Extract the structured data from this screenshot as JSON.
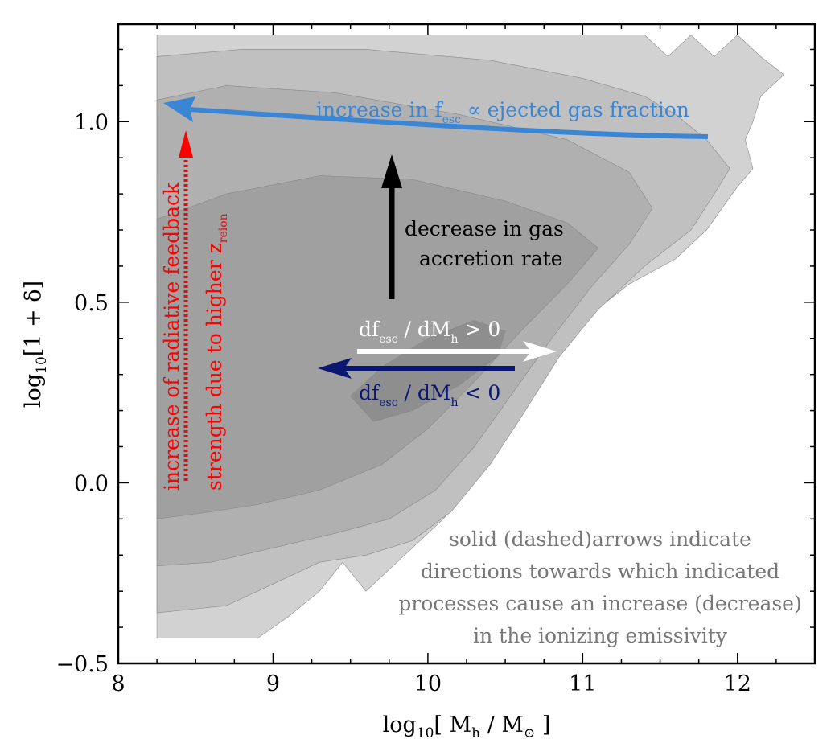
{
  "chart_data": {
    "type": "contour",
    "xlabel_main": "log",
    "xlabel_sub": "10",
    "xlabel_rest": "[ M",
    "xlabel_msub": "h",
    "xlabel_tail": " / M",
    "xlabel_sun": "⊙",
    "xlabel_close": " ]",
    "ylabel_main": "log",
    "ylabel_sub": "10",
    "ylabel_rest": "[1 + δ]",
    "xlim": [
      8,
      12.5
    ],
    "ylim": [
      -0.5,
      1.27
    ],
    "xticks": [
      {
        "v": 8,
        "label": "8"
      },
      {
        "v": 9,
        "label": "9"
      },
      {
        "v": 10,
        "label": "10"
      },
      {
        "v": 11,
        "label": "11"
      },
      {
        "v": 12,
        "label": "12"
      }
    ],
    "yticks": [
      {
        "v": -0.5,
        "label": "−0.5"
      },
      {
        "v": 0.0,
        "label": "0.0"
      },
      {
        "v": 0.5,
        "label": "0.5"
      },
      {
        "v": 1.0,
        "label": "1.0"
      }
    ],
    "contour_levels": [
      {
        "color": "#d2d2d2",
        "points": [
          [
            8.25,
            1.24
          ],
          [
            8.7,
            1.24
          ],
          [
            9.5,
            1.24
          ],
          [
            10.5,
            1.24
          ],
          [
            11.4,
            1.24
          ],
          [
            11.55,
            1.18
          ],
          [
            11.7,
            1.24
          ],
          [
            11.85,
            1.18
          ],
          [
            12.0,
            1.24
          ],
          [
            12.15,
            1.18
          ],
          [
            12.3,
            1.13
          ],
          [
            12.15,
            1.07
          ],
          [
            12.1,
            1.0
          ],
          [
            12.05,
            0.95
          ],
          [
            12.1,
            0.87
          ],
          [
            12.0,
            0.82
          ],
          [
            11.9,
            0.76
          ],
          [
            11.8,
            0.7
          ],
          [
            11.6,
            0.62
          ],
          [
            11.3,
            0.55
          ],
          [
            11.0,
            0.45
          ],
          [
            10.8,
            0.35
          ],
          [
            10.6,
            0.2
          ],
          [
            10.4,
            0.05
          ],
          [
            10.1,
            -0.1
          ],
          [
            9.8,
            -0.22
          ],
          [
            9.6,
            -0.3
          ],
          [
            9.45,
            -0.22
          ],
          [
            9.3,
            -0.3
          ],
          [
            9.1,
            -0.37
          ],
          [
            8.9,
            -0.43
          ],
          [
            8.6,
            -0.43
          ],
          [
            8.25,
            -0.43
          ]
        ]
      },
      {
        "color": "#c0c0c0",
        "points": [
          [
            8.25,
            1.18
          ],
          [
            8.8,
            1.2
          ],
          [
            9.6,
            1.2
          ],
          [
            10.4,
            1.17
          ],
          [
            11.0,
            1.12
          ],
          [
            11.4,
            1.07
          ],
          [
            11.6,
            1.02
          ],
          [
            11.8,
            0.95
          ],
          [
            11.95,
            0.87
          ],
          [
            11.85,
            0.8
          ],
          [
            11.7,
            0.7
          ],
          [
            11.4,
            0.6
          ],
          [
            11.1,
            0.48
          ],
          [
            10.85,
            0.35
          ],
          [
            10.6,
            0.18
          ],
          [
            10.4,
            0.05
          ],
          [
            10.15,
            -0.08
          ],
          [
            9.9,
            -0.16
          ],
          [
            9.6,
            -0.2
          ],
          [
            9.3,
            -0.22
          ],
          [
            9.0,
            -0.28
          ],
          [
            8.7,
            -0.34
          ],
          [
            8.25,
            -0.36
          ]
        ]
      },
      {
        "color": "#b0b0b0",
        "points": [
          [
            8.25,
            1.06
          ],
          [
            8.7,
            1.1
          ],
          [
            9.4,
            1.08
          ],
          [
            10.2,
            1.02
          ],
          [
            10.9,
            0.95
          ],
          [
            11.3,
            0.86
          ],
          [
            11.45,
            0.76
          ],
          [
            11.3,
            0.66
          ],
          [
            11.05,
            0.54
          ],
          [
            10.8,
            0.4
          ],
          [
            10.55,
            0.25
          ],
          [
            10.3,
            0.1
          ],
          [
            10.05,
            -0.02
          ],
          [
            9.75,
            -0.1
          ],
          [
            9.4,
            -0.14
          ],
          [
            9.0,
            -0.18
          ],
          [
            8.6,
            -0.22
          ],
          [
            8.25,
            -0.23
          ]
        ]
      },
      {
        "color": "#a0a0a0",
        "points": [
          [
            8.25,
            0.73
          ],
          [
            8.7,
            0.8
          ],
          [
            9.3,
            0.85
          ],
          [
            9.9,
            0.84
          ],
          [
            10.5,
            0.78
          ],
          [
            10.9,
            0.72
          ],
          [
            11.1,
            0.65
          ],
          [
            10.9,
            0.55
          ],
          [
            10.6,
            0.42
          ],
          [
            10.3,
            0.28
          ],
          [
            10.0,
            0.15
          ],
          [
            9.7,
            0.05
          ],
          [
            9.3,
            -0.02
          ],
          [
            8.9,
            -0.06
          ],
          [
            8.6,
            -0.08
          ],
          [
            8.25,
            -0.1
          ]
        ]
      },
      {
        "color": "#8e8e8e",
        "points": [
          [
            9.5,
            0.24
          ],
          [
            9.7,
            0.32
          ],
          [
            10.0,
            0.4
          ],
          [
            10.3,
            0.45
          ],
          [
            10.5,
            0.42
          ],
          [
            10.45,
            0.35
          ],
          [
            10.2,
            0.27
          ],
          [
            9.9,
            0.2
          ],
          [
            9.65,
            0.17
          ]
        ]
      }
    ],
    "arrows": {
      "esc_gas": {
        "color": "#3a86d4",
        "label": "increase in f",
        "sub": "esc",
        "tail": " ∝ ejected gas fraction"
      },
      "feedback": {
        "color": "#ff0000",
        "line1": "increase of radiative feedback",
        "line2_main": "strength due to higher z",
        "line2_sub": "reion"
      },
      "accretion": {
        "color": "#000000",
        "line1": "decrease in gas",
        "line2": "accretion rate"
      },
      "positive": {
        "color": "#ffffff",
        "label_a": "df",
        "sub_a": "esc",
        "label_b": " / dM",
        "sub_b": "h",
        "label_c": " > 0"
      },
      "negative": {
        "color": "#0b1670",
        "label_a": "df",
        "sub_a": "esc",
        "label_b": " / dM",
        "sub_b": "h",
        "label_c": " < 0"
      }
    },
    "note": {
      "color": "#777777",
      "lines": [
        "solid (dashed)arrows indicate",
        "directions towards which indicated",
        "processes cause an increase (decrease)",
        "in the ionizing emissivity"
      ]
    }
  }
}
